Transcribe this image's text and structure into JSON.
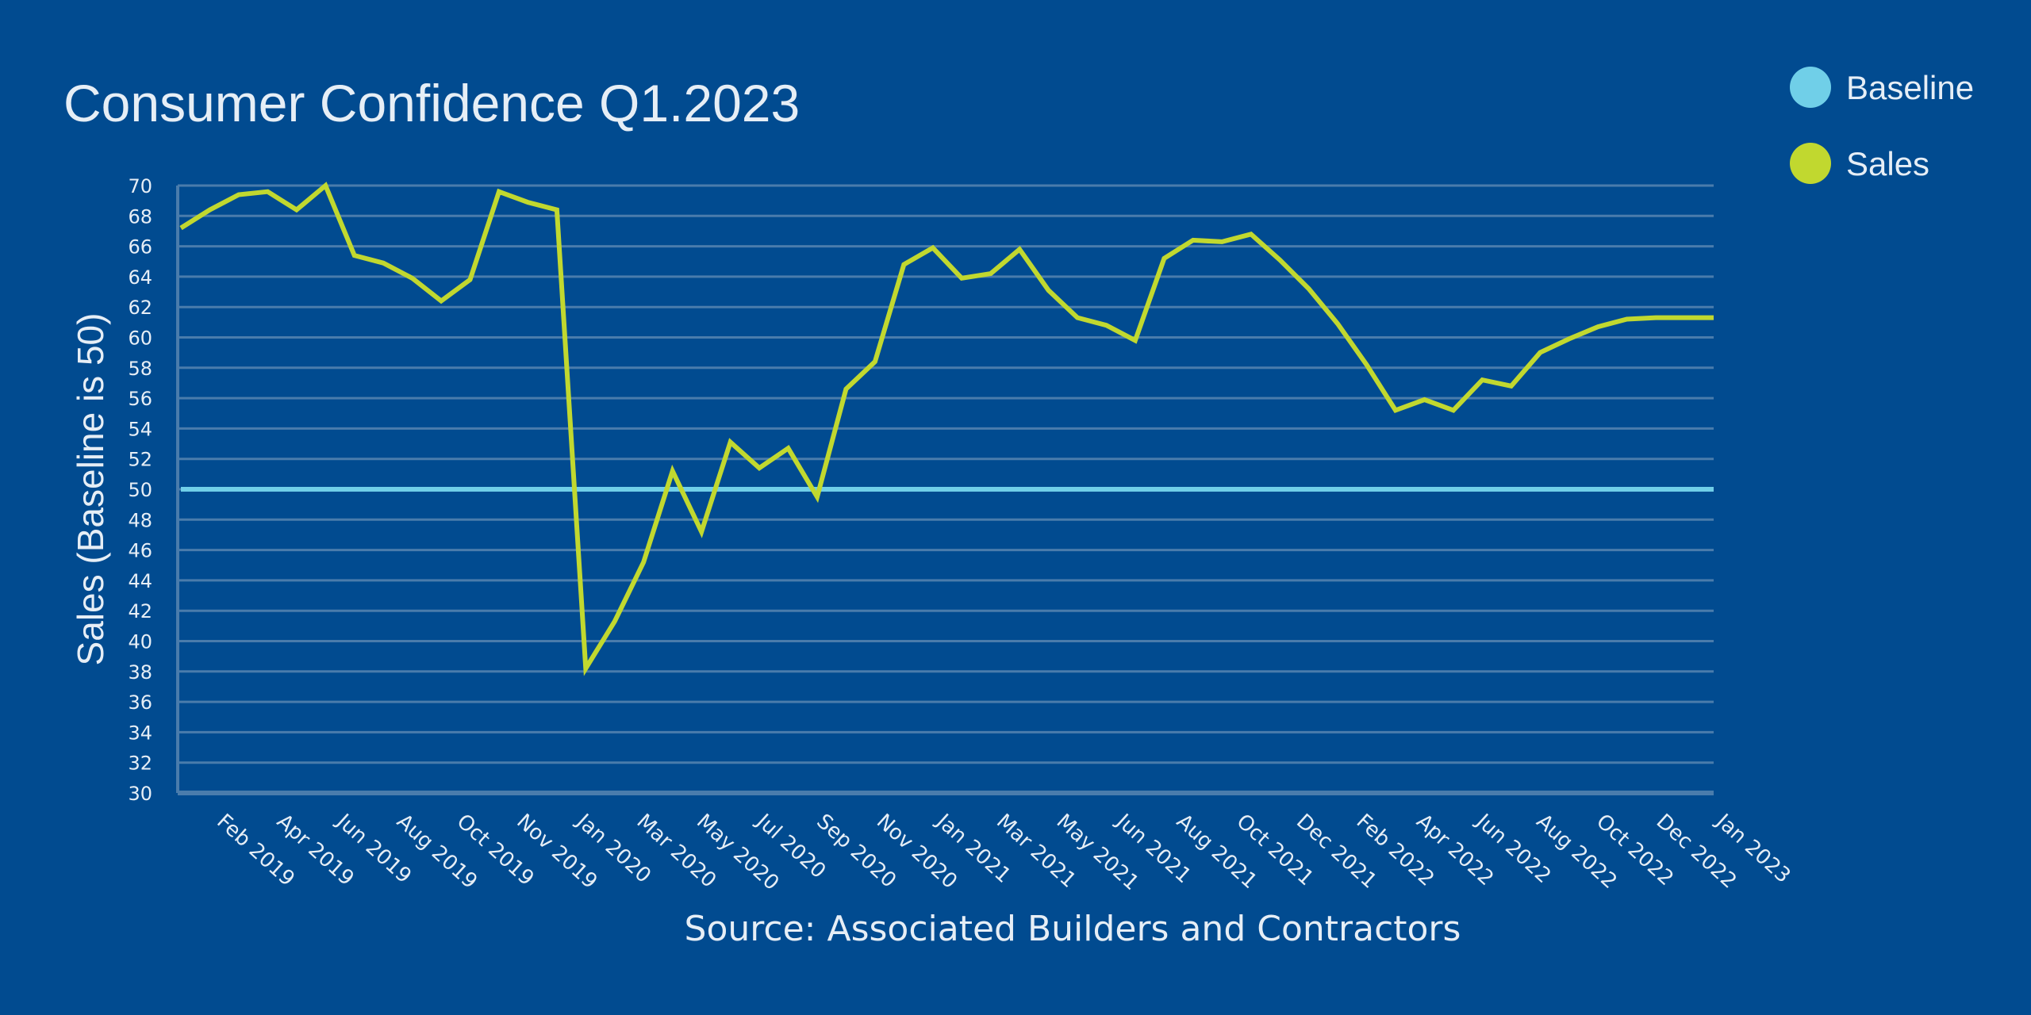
{
  "chart_data": {
    "type": "line",
    "title": "Consumer Confidence Q1.2023",
    "ylabel": "Sales (Baseline is 50)",
    "source": "Source: Associated Builders and Contractors",
    "ylim": [
      30,
      70
    ],
    "y_ticks": [
      30,
      32,
      34,
      36,
      38,
      40,
      42,
      44,
      46,
      48,
      50,
      52,
      54,
      56,
      58,
      60,
      62,
      64,
      66,
      68,
      70
    ],
    "x_tick_labels": [
      "Feb 2019",
      "Apr 2019",
      "Jun 2019",
      "Aug 2019",
      "Oct 2019",
      "Nov 2019",
      "Jan 2020",
      "Mar 2020",
      "May 2020",
      "Jul 2020",
      "Sep 2020",
      "Nov 2020",
      "Jan 2021",
      "Mar 2021",
      "May 2021",
      "Jun 2021",
      "Aug 2021",
      "Oct 2021",
      "Dec 2021",
      "Feb 2022",
      "Apr 2022",
      "Jun 2022",
      "Aug 2022",
      "Oct 2022",
      "Dec 2022",
      "Jan 2023"
    ],
    "grid": true,
    "legend_position": "top-right",
    "series": [
      {
        "name": "Baseline",
        "color": "#70cfe8",
        "values": [
          50,
          50,
          50,
          50,
          50,
          50,
          50,
          50,
          50,
          50,
          50,
          50,
          50,
          50,
          50,
          50,
          50,
          50,
          50,
          50,
          50,
          50,
          50,
          50,
          50,
          50,
          50,
          50,
          50,
          50,
          50,
          50,
          50,
          50,
          50,
          50,
          50,
          50,
          50,
          50,
          50,
          50,
          50,
          50,
          50,
          50,
          50,
          50,
          50,
          50,
          50,
          50,
          50,
          50
        ]
      },
      {
        "name": "Sales",
        "color": "#c1d82f",
        "values": [
          67.2,
          68.4,
          69.4,
          69.6,
          68.4,
          70.0,
          65.4,
          64.9,
          63.9,
          62.4,
          63.8,
          69.6,
          68.9,
          68.4,
          38.2,
          41.3,
          45.2,
          51.2,
          47.2,
          53.1,
          51.4,
          52.7,
          49.5,
          56.6,
          58.4,
          64.8,
          65.9,
          63.9,
          64.2,
          65.8,
          63.1,
          61.3,
          60.8,
          59.8,
          65.2,
          66.4,
          66.3,
          66.8,
          65.1,
          63.2,
          60.9,
          58.2,
          55.2,
          55.9,
          55.2,
          57.2,
          56.8,
          59.0,
          59.9,
          60.7,
          61.2,
          61.3,
          61.3,
          61.3
        ]
      }
    ]
  },
  "colors": {
    "background": "#014b90",
    "grid": "#4a7cac",
    "text": "#e6eef6"
  }
}
